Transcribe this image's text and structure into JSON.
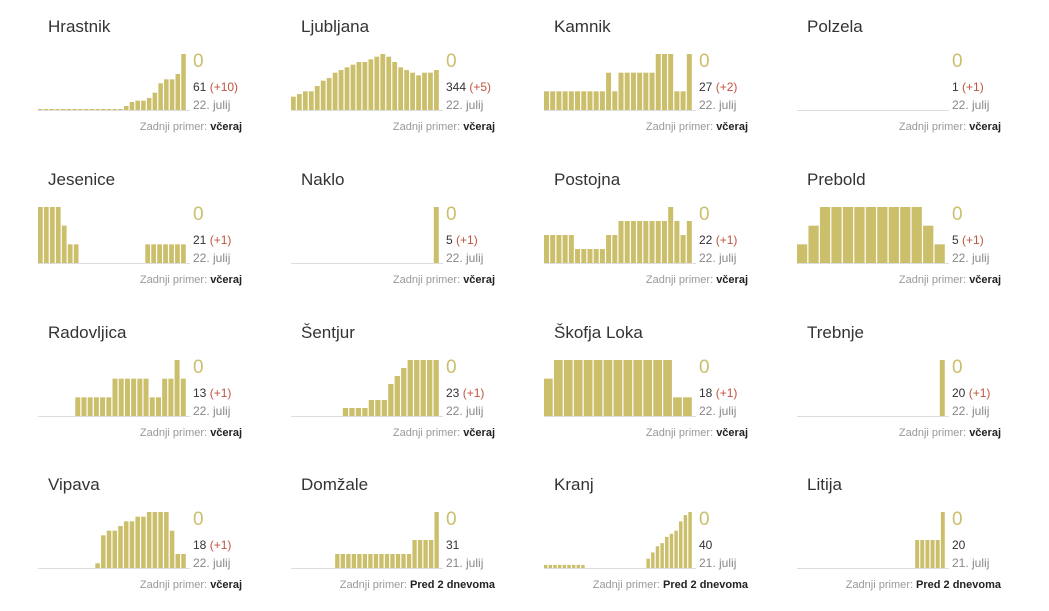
{
  "colors": {
    "bar": "#cbbf6b",
    "zero_value": "#cbbf6b",
    "delta": "#c0553f",
    "baseline": "#dddddd"
  },
  "labels": {
    "last_case": "Zadnji primer:"
  },
  "chart_data": [
    {
      "type": "bar",
      "title": "Hrastnik",
      "current": "0",
      "total": "61",
      "delta": "(+10)",
      "date": "22. julij",
      "last_case": "včeraj",
      "values": [
        0.3,
        0.3,
        0.3,
        0.3,
        0.3,
        0.3,
        0.3,
        0.3,
        0.3,
        0.3,
        0.3,
        0.3,
        0.3,
        0.3,
        0.3,
        1.5,
        3,
        3.5,
        3.5,
        4.5,
        6.5,
        10,
        11.5,
        11.5,
        13.5,
        21
      ]
    },
    {
      "type": "bar",
      "title": "Ljubljana",
      "current": "0",
      "total": "344",
      "delta": "(+5)",
      "date": "22. julij",
      "last_case": "včeraj",
      "values": [
        5,
        6,
        7,
        7,
        9,
        11,
        12,
        14,
        15,
        16,
        17,
        18,
        18,
        19,
        20,
        21,
        20,
        18,
        16,
        15,
        14,
        13,
        14,
        14,
        15
      ]
    },
    {
      "type": "bar",
      "title": "Kamnik",
      "current": "0",
      "total": "27",
      "delta": "(+2)",
      "date": "22. julij",
      "last_case": "včeraj",
      "values": [
        1,
        1,
        1,
        1,
        1,
        1,
        1,
        1,
        1,
        1,
        2,
        1,
        2,
        2,
        2,
        2,
        2,
        2,
        3,
        3,
        3,
        1,
        1,
        3
      ]
    },
    {
      "type": "bar",
      "title": "Polzela",
      "current": "0",
      "total": "1",
      "delta": "(+1)",
      "date": "22. julij",
      "last_case": "včeraj",
      "values": []
    },
    {
      "type": "bar",
      "title": "Jesenice",
      "current": "0",
      "total": "21",
      "delta": "(+1)",
      "date": "22. julij",
      "last_case": "včeraj",
      "values": [
        3,
        3,
        3,
        3,
        2,
        1,
        1,
        0,
        0,
        0,
        0,
        0,
        0,
        0,
        0,
        0,
        0,
        0,
        1,
        1,
        1,
        1,
        1,
        1,
        1
      ]
    },
    {
      "type": "bar",
      "title": "Naklo",
      "current": "0",
      "total": "5",
      "delta": "(+1)",
      "date": "22. julij",
      "last_case": "včeraj",
      "values": [
        0,
        0,
        0,
        0,
        0,
        0,
        0,
        0,
        0,
        0,
        0,
        0,
        0,
        0,
        0,
        0,
        0,
        0,
        0,
        0,
        0,
        0,
        0,
        1
      ]
    },
    {
      "type": "bar",
      "title": "Postojna",
      "current": "0",
      "total": "22",
      "delta": "(+1)",
      "date": "22. julij",
      "last_case": "včeraj",
      "values": [
        2,
        2,
        2,
        2,
        2,
        1,
        1,
        1,
        1,
        1,
        2,
        2,
        3,
        3,
        3,
        3,
        3,
        3,
        3,
        3,
        4,
        3,
        2,
        3
      ]
    },
    {
      "type": "bar",
      "title": "Prebold",
      "current": "0",
      "total": "5",
      "delta": "(+1)",
      "date": "22. julij",
      "last_case": "včeraj",
      "values": [
        1,
        2,
        3,
        3,
        3,
        3,
        3,
        3,
        3,
        3,
        3,
        2,
        1
      ]
    },
    {
      "type": "bar",
      "title": "Radovljica",
      "current": "0",
      "total": "13",
      "delta": "(+1)",
      "date": "22. julij",
      "last_case": "včeraj",
      "values": [
        0,
        0,
        0,
        0,
        0,
        0,
        1,
        1,
        1,
        1,
        1,
        1,
        2,
        2,
        2,
        2,
        2,
        2,
        1,
        1,
        2,
        2,
        3,
        2
      ]
    },
    {
      "type": "bar",
      "title": "Šentjur",
      "current": "0",
      "total": "23",
      "delta": "(+1)",
      "date": "22. julij",
      "last_case": "včeraj",
      "values": [
        0,
        0,
        0,
        0,
        0,
        0,
        0,
        0,
        1,
        1,
        1,
        1,
        2,
        2,
        2,
        4,
        5,
        6,
        7,
        7,
        7,
        7,
        7
      ]
    },
    {
      "type": "bar",
      "title": "Škofja Loka",
      "current": "0",
      "total": "18",
      "delta": "(+1)",
      "date": "22. julij",
      "last_case": "včeraj",
      "values": [
        2,
        3,
        3,
        3,
        3,
        3,
        3,
        3,
        3,
        3,
        3,
        3,
        3,
        1,
        1
      ]
    },
    {
      "type": "bar",
      "title": "Trebnje",
      "current": "0",
      "total": "20",
      "delta": "(+1)",
      "date": "22. julij",
      "last_case": "včeraj",
      "values": [
        0,
        0,
        0,
        0,
        0,
        0,
        0,
        0,
        0,
        0,
        0,
        0,
        0,
        0,
        0,
        0,
        0,
        0,
        0,
        0,
        0,
        0,
        0,
        1
      ]
    },
    {
      "type": "bar",
      "title": "Vipava",
      "current": "0",
      "total": "18",
      "delta": "(+1)",
      "date": "22. julij",
      "last_case": "včeraj",
      "values": [
        0,
        0,
        0,
        0,
        0,
        0,
        0,
        0,
        0,
        0,
        1,
        7,
        8,
        8,
        9,
        10,
        10,
        11,
        11,
        12,
        12,
        12,
        12,
        8,
        3,
        3
      ]
    },
    {
      "type": "bar",
      "title": "Domžale",
      "current": "0",
      "total": "31",
      "delta": "",
      "date": "21. julij",
      "last_case": "Pred 2 dnevoma",
      "values": [
        0,
        0,
        0,
        0,
        0,
        0,
        0,
        0,
        1,
        1,
        1,
        1,
        1,
        1,
        1,
        1,
        1,
        1,
        1,
        1,
        1,
        1,
        2,
        2,
        2,
        2,
        4
      ]
    },
    {
      "type": "bar",
      "title": "Kranj",
      "current": "0",
      "total": "40",
      "delta": "",
      "date": "21. julij",
      "last_case": "Pred 2 dnevoma",
      "values": [
        1,
        1,
        1,
        1,
        1,
        1,
        1,
        1,
        1,
        0,
        0,
        0,
        0,
        0,
        0,
        0,
        0,
        0,
        0,
        0,
        0,
        0,
        3,
        5,
        7,
        8,
        10,
        11,
        12,
        15,
        17,
        18
      ]
    },
    {
      "type": "bar",
      "title": "Litija",
      "current": "0",
      "total": "20",
      "delta": "",
      "date": "21. julij",
      "last_case": "Pred 2 dnevoma",
      "values": [
        0,
        0,
        0,
        0,
        0,
        0,
        0,
        0,
        0,
        0,
        0,
        0,
        0,
        0,
        0,
        0,
        0,
        0,
        0,
        0,
        0,
        0,
        0,
        1,
        1,
        1,
        1,
        1,
        2
      ]
    }
  ]
}
